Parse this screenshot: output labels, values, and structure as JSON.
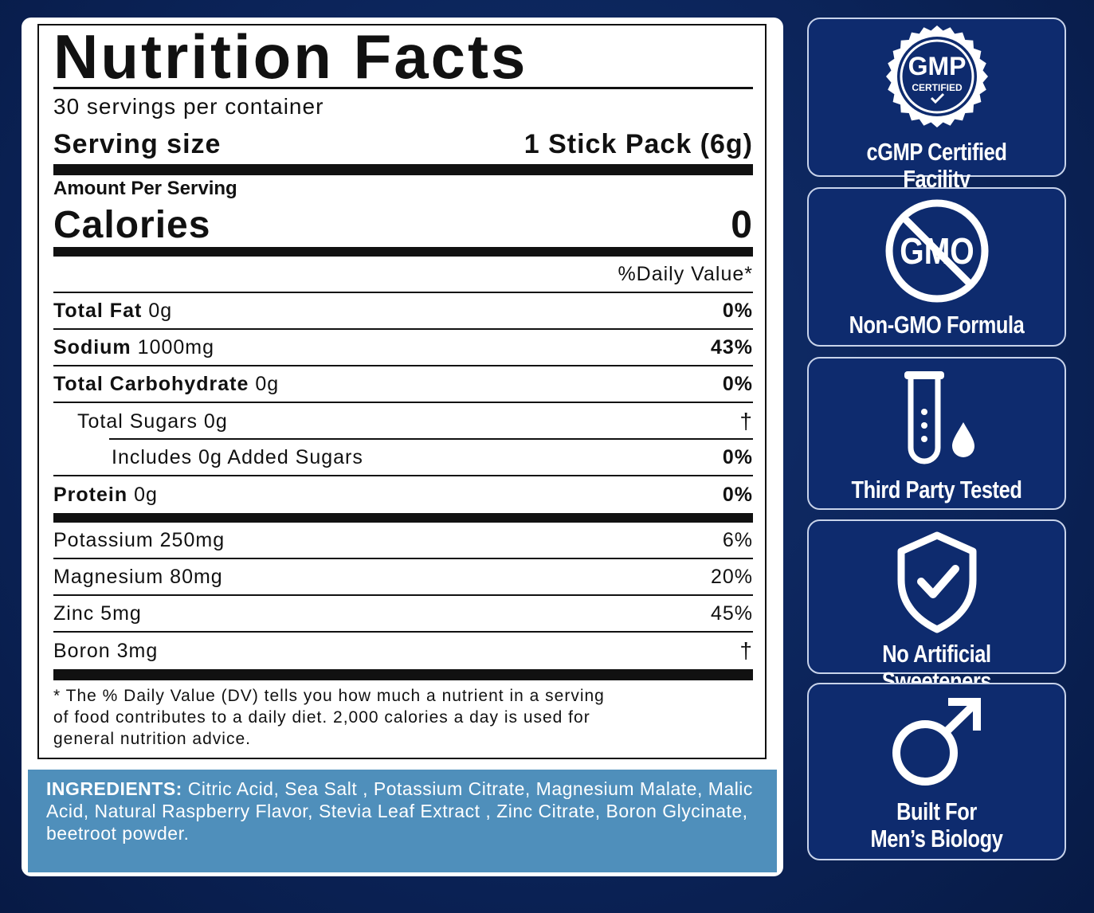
{
  "label": {
    "title": "Nutrition Facts",
    "servings": "30 servings per container",
    "serving_size": {
      "label": "Serving size",
      "value": "1 Stick Pack (6g)"
    },
    "amount_per_serving": "Amount Per Serving",
    "calories": {
      "label": "Calories",
      "value": "0"
    },
    "daily_value_header": "%Daily Value*",
    "nutrients": [
      {
        "name": "Total Fat",
        "amount": "0g",
        "dv": "0%"
      },
      {
        "name": "Sodium",
        "amount": "1000mg",
        "dv": "43%"
      },
      {
        "name": "Total Carbohydrate",
        "amount": "0g",
        "dv": "0%"
      },
      {
        "name": "Total Sugars 0g",
        "dv": "†"
      },
      {
        "name": "Includes 0g Added Sugars",
        "dv": "0%"
      },
      {
        "name": "Protein",
        "amount": "0g",
        "dv": "0%"
      }
    ],
    "minerals": [
      {
        "name": "Potassium 250mg",
        "dv": "6%"
      },
      {
        "name": "Magnesium 80mg",
        "dv": "20%"
      },
      {
        "name": "Zinc 5mg",
        "dv": "45%"
      },
      {
        "name": "Boron 3mg",
        "dv": "†"
      }
    ],
    "footnote": "* The %  Daily Value (DV) tells you how much a nutrient in a serving of food contributes to a daily diet. 2,000 calories a day is used for general nutrition advice."
  },
  "ingredients": {
    "label": "INGREDIENTS:",
    "text": "Citric Acid, Sea Salt , Potassium Citrate, Magnesium Malate, Malic Acid, Natural Raspberry Flavor, Stevia Leaf Extract , Zinc Citrate, Boron Glycinate, beetroot powder."
  },
  "badges": [
    {
      "icon_text": [
        "GMP",
        "CERTIFIED"
      ],
      "lines": [
        "cGMP Certified Facility"
      ]
    },
    {
      "icon_text": [
        "GMO"
      ],
      "lines": [
        "Non-GMO Formula"
      ]
    },
    {
      "lines": [
        "Third Party Tested"
      ]
    },
    {
      "lines": [
        "No Artificial Sweeteners"
      ]
    },
    {
      "lines": [
        "Built For",
        "Men’s Biology"
      ]
    }
  ]
}
